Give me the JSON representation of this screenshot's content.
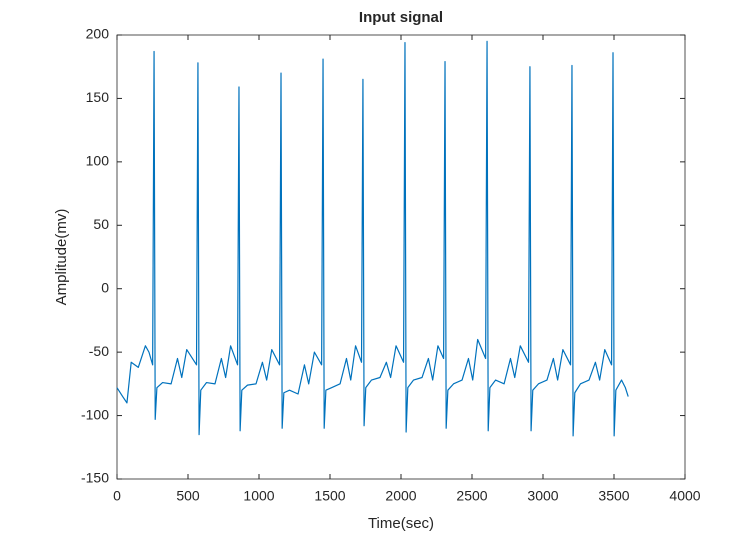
{
  "chart_data": {
    "type": "line",
    "title": "Input signal",
    "xlabel": "Time(sec)",
    "ylabel": "Amplitude(mv)",
    "xlim": [
      0,
      4000
    ],
    "xticks": [
      0,
      500,
      1000,
      1500,
      2000,
      2500,
      3000,
      3500,
      4000
    ],
    "ylim": [
      -150,
      200
    ],
    "yticks": [
      -150,
      -100,
      -50,
      0,
      50,
      100,
      150,
      200
    ],
    "series": [
      {
        "color": "#0072bd",
        "x": [
          0,
          40,
          70,
          100,
          150,
          200,
          225,
          251,
          261,
          269,
          281,
          321,
          381,
          426,
          456,
          491,
          560,
          570,
          578,
          590,
          630,
          690,
          735,
          765,
          800,
          849,
          859,
          867,
          879,
          919,
          979,
          1024,
          1054,
          1090,
          1145,
          1155,
          1163,
          1175,
          1215,
          1275,
          1320,
          1350,
          1390,
          1441,
          1451,
          1459,
          1471,
          1511,
          1571,
          1616,
          1646,
          1680,
          1722,
          1732,
          1740,
          1752,
          1792,
          1852,
          1897,
          1927,
          1965,
          2018,
          2028,
          2036,
          2048,
          2088,
          2148,
          2193,
          2223,
          2260,
          2300,
          2310,
          2318,
          2330,
          2370,
          2430,
          2475,
          2505,
          2540,
          2596,
          2606,
          2614,
          2626,
          2666,
          2726,
          2771,
          2801,
          2840,
          2898,
          2908,
          2916,
          2928,
          2968,
          3028,
          3073,
          3103,
          3140,
          3194,
          3204,
          3212,
          3224,
          3264,
          3324,
          3369,
          3399,
          3435,
          3483,
          3493,
          3501,
          3513,
          3553,
          3580,
          3600
        ],
        "values": [
          -78,
          -85,
          -90,
          -58,
          -62,
          -45,
          -50,
          -60,
          187,
          -103,
          -78,
          -74,
          -75,
          -55,
          -70,
          -48,
          -60,
          178,
          -115,
          -80,
          -74,
          -75,
          -55,
          -70,
          -45,
          -60,
          159,
          -112,
          -80,
          -76,
          -75,
          -58,
          -72,
          -48,
          -60,
          170,
          -110,
          -82,
          -80,
          -83,
          -60,
          -75,
          -50,
          -60,
          181,
          -110,
          -80,
          -78,
          -75,
          -55,
          -72,
          -45,
          -58,
          165,
          -108,
          -78,
          -72,
          -70,
          -58,
          -70,
          -45,
          -58,
          194,
          -113,
          -78,
          -72,
          -70,
          -55,
          -72,
          -45,
          -55,
          179,
          -110,
          -80,
          -75,
          -72,
          -55,
          -72,
          -40,
          -55,
          195,
          -112,
          -78,
          -72,
          -75,
          -55,
          -70,
          -45,
          -58,
          175,
          -112,
          -80,
          -75,
          -72,
          -55,
          -72,
          -48,
          -60,
          176,
          -116,
          -82,
          -75,
          -72,
          -58,
          -72,
          -48,
          -60,
          186,
          -116,
          -80,
          -72,
          -78,
          -85
        ]
      }
    ]
  }
}
